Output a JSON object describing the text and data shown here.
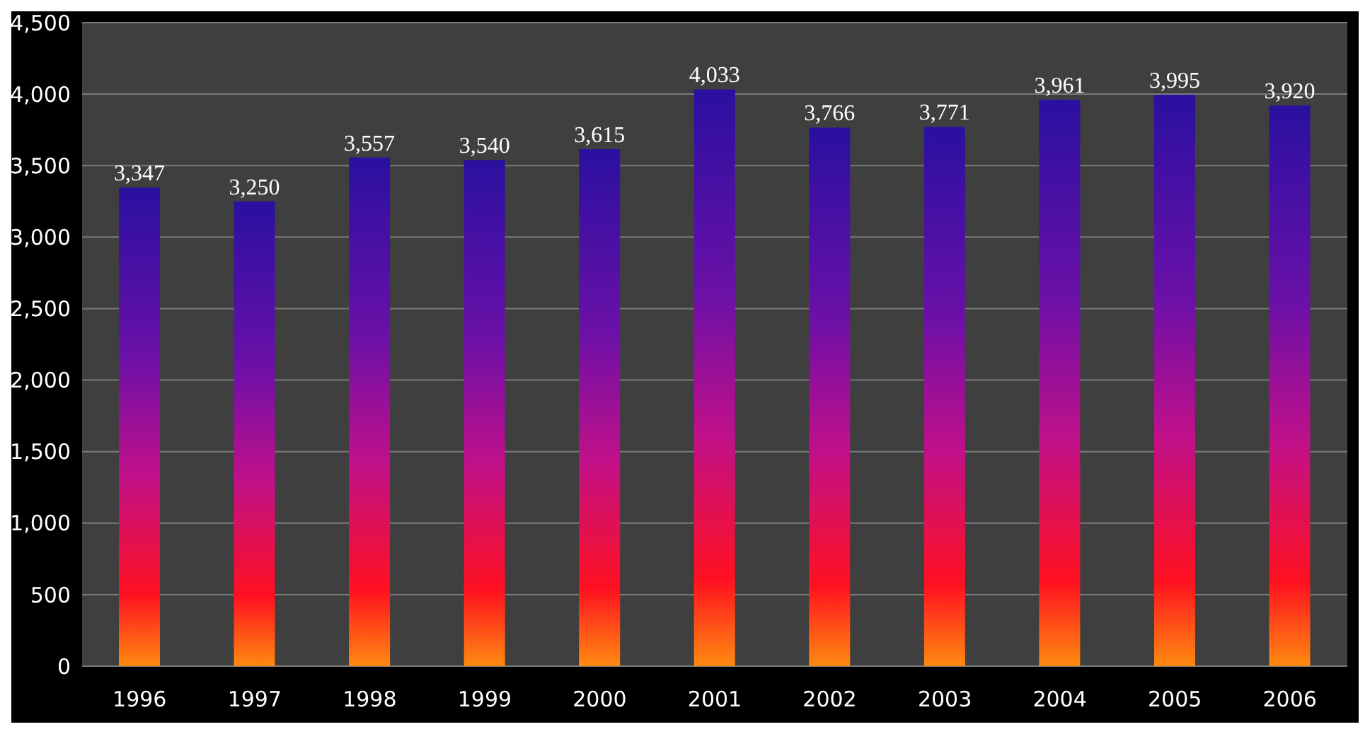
{
  "chart_data": {
    "type": "bar",
    "categories": [
      "1996",
      "1997",
      "1998",
      "1999",
      "2000",
      "2001",
      "2002",
      "2003",
      "2004",
      "2005",
      "2006"
    ],
    "values": [
      3347,
      3250,
      3557,
      3540,
      3615,
      4033,
      3766,
      3771,
      3961,
      3995,
      3920
    ],
    "value_labels": [
      "3,347",
      "3,250",
      "3,557",
      "3,540",
      "3,615",
      "4,033",
      "3,766",
      "3,771",
      "3,961",
      "3,995",
      "3,920"
    ],
    "color": "#2a10a0",
    "grid": "y",
    "ylim": [
      0,
      4500
    ],
    "yticks": [
      0,
      500,
      {
        "value": 1000,
        "label": "1,000"
      },
      {
        "value": 1500,
        "label": "1,500"
      },
      {
        "value": 2000,
        "label": "2,000"
      },
      {
        "value": 2500,
        "label": "2,500"
      },
      {
        "value": 3000,
        "label": "3,000"
      },
      {
        "value": 3500,
        "label": "3,500"
      },
      {
        "value": 4000,
        "label": "4,000"
      },
      {
        "value": 4500,
        "label": "4,500"
      }
    ]
  }
}
